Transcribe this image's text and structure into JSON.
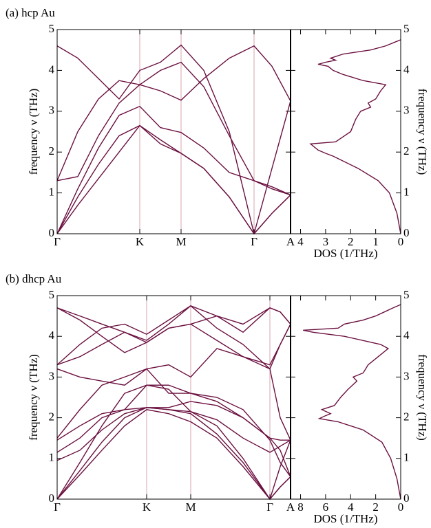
{
  "chart_data": [
    {
      "type": "band",
      "title": "(a) hcp Au",
      "ylabel": "frequency ν (THz)",
      "color": "#6b1040",
      "line_color": "#d9a3ad",
      "xlim": [
        0,
        339
      ],
      "ylim": [
        0,
        5
      ],
      "yticks": [
        0,
        1,
        2,
        3,
        4,
        5
      ],
      "xticks": [
        {
          "value": 0,
          "label": "Γ"
        },
        {
          "value": 120,
          "label": "K"
        },
        {
          "value": 180,
          "label": "M"
        },
        {
          "value": 286,
          "label": "Γ"
        },
        {
          "value": 339,
          "label": "A"
        }
      ],
      "x": [
        0,
        30,
        60,
        90,
        120,
        150,
        180,
        213,
        250,
        286,
        312,
        339
      ],
      "series": [
        {
          "values": [
            0,
            0.7,
            1.35,
            2.0,
            2.65,
            2.3,
            1.97,
            1.6,
            0.9,
            0,
            0.5,
            0.95
          ]
        },
        {
          "values": [
            0,
            0.9,
            1.7,
            2.4,
            2.65,
            2.2,
            1.97,
            1.6,
            0.9,
            0,
            0.5,
            0.95
          ]
        },
        {
          "values": [
            0,
            1.1,
            2.1,
            2.9,
            3.12,
            2.6,
            2.48,
            2.1,
            1.5,
            1.3,
            1.15,
            0.95
          ]
        },
        {
          "values": [
            1.3,
            1.4,
            2.4,
            3.2,
            3.65,
            3.5,
            3.27,
            3.8,
            4.3,
            4.6,
            4.1,
            3.25
          ]
        },
        {
          "values": [
            1.3,
            2.5,
            3.3,
            3.75,
            3.65,
            4.0,
            4.2,
            3.6,
            2.4,
            1.3,
            1.1,
            0.95
          ]
        },
        {
          "values": [
            4.6,
            4.3,
            3.8,
            3.3,
            4.0,
            4.2,
            4.62,
            4.0,
            2.5,
            0,
            1.6,
            3.25
          ]
        }
      ]
    },
    {
      "type": "dos",
      "xlabel": "DOS (1/THz)",
      "ylabel": "frequency ν (THz)",
      "color": "#6b1040",
      "xlim": [
        4.4,
        0
      ],
      "xticks": [
        4,
        3,
        2,
        1,
        0
      ],
      "ylim": [
        0,
        5
      ],
      "yticks": [
        0,
        1,
        2,
        3,
        4,
        5
      ],
      "series": [
        {
          "x": [
            0,
            0.15,
            0.45,
            0.9,
            1.7,
            2.7,
            3.0,
            3.3,
            3.6,
            2.6,
            2.0,
            1.8,
            1.6,
            1.2,
            1.3,
            1.0,
            0.8,
            0.6,
            1.5,
            2.3,
            2.7,
            2.9,
            3.3,
            3.0,
            2.6,
            2.8,
            2.3,
            1.2,
            0.6,
            0.2,
            0
          ],
          "values": [
            0,
            0.5,
            1.0,
            1.3,
            1.6,
            1.9,
            1.97,
            2.05,
            2.2,
            2.25,
            2.5,
            2.8,
            3.0,
            3.1,
            3.2,
            3.3,
            3.5,
            3.65,
            3.75,
            3.9,
            4.0,
            4.1,
            4.15,
            4.2,
            4.25,
            4.3,
            4.4,
            4.5,
            4.6,
            4.7,
            4.75
          ]
        }
      ]
    },
    {
      "type": "band",
      "title": "(b) dhcp Au",
      "ylabel": "frequency ν (THz)",
      "color": "#6b1040",
      "line_color": "#d9a3ad",
      "xlim": [
        0,
        339
      ],
      "ylim": [
        0,
        5
      ],
      "yticks": [
        0,
        1,
        2,
        3,
        4,
        5
      ],
      "xticks": [
        {
          "value": 0,
          "label": "Γ"
        },
        {
          "value": 130,
          "label": "K"
        },
        {
          "value": 194,
          "label": "M"
        },
        {
          "value": 309,
          "label": "Γ"
        },
        {
          "value": 339,
          "label": "A"
        }
      ],
      "x": [
        0,
        33,
        65,
        98,
        130,
        162,
        194,
        232,
        270,
        309,
        324,
        339
      ],
      "series": [
        {
          "values": [
            0,
            0.6,
            1.2,
            1.8,
            2.2,
            2.1,
            1.9,
            1.5,
            0.8,
            0,
            0.3,
            0.55
          ]
        },
        {
          "values": [
            0,
            0.7,
            1.4,
            2.0,
            2.25,
            2.2,
            2.1,
            1.6,
            0.9,
            0,
            0.3,
            0.55
          ]
        },
        {
          "values": [
            0,
            0.9,
            1.8,
            2.6,
            2.8,
            2.7,
            2.15,
            1.8,
            1.0,
            0,
            0.8,
            1.45
          ]
        },
        {
          "values": [
            0.95,
            1.2,
            1.7,
            2.1,
            2.25,
            2.2,
            2.15,
            1.95,
            1.5,
            1.15,
            1.3,
            1.45
          ]
        },
        {
          "values": [
            1.15,
            1.5,
            2.0,
            2.2,
            2.25,
            2.25,
            2.4,
            2.3,
            2.0,
            1.5,
            1.45,
            1.45
          ]
        },
        {
          "values": [
            1.45,
            1.8,
            2.1,
            2.2,
            2.8,
            2.8,
            2.6,
            2.5,
            2.2,
            1.45,
            0.9,
            0.55
          ]
        },
        {
          "values": [
            1.5,
            2.2,
            2.8,
            3.0,
            3.2,
            2.6,
            2.6,
            2.4,
            2.0,
            1.5,
            1.2,
            0.55
          ]
        },
        {
          "values": [
            3.2,
            3.0,
            2.9,
            2.8,
            3.2,
            3.3,
            3.0,
            3.7,
            3.5,
            3.2,
            2.0,
            1.45
          ]
        },
        {
          "values": [
            3.3,
            3.5,
            3.8,
            4.1,
            3.85,
            4.2,
            4.3,
            3.9,
            3.5,
            3.3,
            3.8,
            4.3
          ]
        },
        {
          "values": [
            4.7,
            4.5,
            4.3,
            4.1,
            3.9,
            4.3,
            4.75,
            4.5,
            4.1,
            4.7,
            4.6,
            4.3
          ]
        },
        {
          "values": [
            3.3,
            3.8,
            4.2,
            4.3,
            4.05,
            4.4,
            4.75,
            4.2,
            3.8,
            3.2,
            3.8,
            4.3
          ]
        },
        {
          "values": [
            4.7,
            4.4,
            4.0,
            3.6,
            3.85,
            4.2,
            4.3,
            4.5,
            4.3,
            4.7,
            4.6,
            4.3
          ]
        }
      ]
    },
    {
      "type": "dos",
      "xlabel": "DOS (1/THz)",
      "ylabel": "frequency ν (THz)",
      "color": "#6b1040",
      "xlim": [
        8.8,
        0
      ],
      "xticks": [
        8,
        6,
        4,
        2,
        0
      ],
      "ylim": [
        0,
        5
      ],
      "yticks": [
        0,
        1,
        2,
        3,
        4,
        5
      ],
      "series": [
        {
          "x": [
            0,
            0.3,
            0.8,
            1.5,
            3.0,
            5.0,
            6.5,
            6.0,
            5.6,
            6.3,
            5.3,
            4.8,
            4.2,
            3.5,
            3.8,
            3.0,
            2.6,
            1.8,
            1.0,
            1.6,
            4.5,
            7.0,
            7.8,
            5.0,
            4.5,
            3.0,
            2.0,
            1.3,
            0.6,
            0
          ],
          "values": [
            0,
            0.5,
            1.0,
            1.4,
            1.7,
            1.9,
            1.98,
            2.05,
            2.1,
            2.2,
            2.3,
            2.5,
            2.7,
            2.9,
            3.0,
            3.1,
            3.3,
            3.5,
            3.7,
            3.8,
            4.0,
            4.1,
            4.15,
            4.2,
            4.3,
            4.4,
            4.5,
            4.6,
            4.7,
            4.78
          ]
        }
      ]
    }
  ]
}
